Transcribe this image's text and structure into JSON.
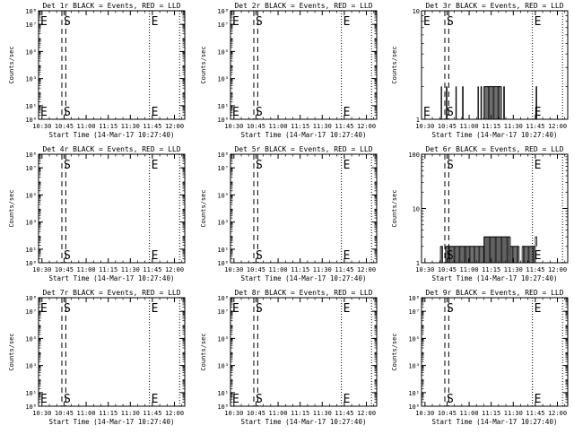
{
  "figure": {
    "background": "#ffffff",
    "ink": "#000000"
  },
  "chart_data": [
    {
      "type": "line",
      "title": "Det 1r BLACK = Events, RED = LLD",
      "ylabel": "Counts/sec",
      "xlabel": "Start Time (14-Mar-17 10:27:40)",
      "x_ticks": [
        "10:30",
        "10:45",
        "11:00",
        "11:15",
        "11:30",
        "11:45",
        "12:00"
      ],
      "xlim": [
        "10:27:40",
        "12:07:00"
      ],
      "y_scale": "log",
      "ylim": [
        1,
        100000000
      ],
      "y_ticks": [
        1,
        10,
        1000,
        100000,
        10000000,
        100000000
      ],
      "y_tick_labels": [
        "10⁰",
        "10¹",
        "10³",
        "10⁵",
        "10⁷",
        "10⁸"
      ],
      "markers": [
        {
          "label": "E",
          "time": "10:27:40",
          "style": "dotted"
        },
        {
          "label": "S",
          "time": "10:43:30",
          "style": "dashed"
        },
        {
          "label": "",
          "time": "10:46:10",
          "style": "dashed"
        },
        {
          "label": "E",
          "time": "11:43:00",
          "style": "dotted"
        },
        {
          "label": "",
          "time": "12:03:30",
          "style": "dotted"
        }
      ],
      "series": []
    },
    {
      "type": "line",
      "title": "Det 2r BLACK = Events, RED = LLD",
      "ylabel": "Counts/sec",
      "xlabel": "Start Time (14-Mar-17 10:27:40)",
      "x_ticks": [
        "10:30",
        "10:45",
        "11:00",
        "11:15",
        "11:30",
        "11:45",
        "12:00"
      ],
      "xlim": [
        "10:27:40",
        "12:07:00"
      ],
      "y_scale": "log",
      "ylim": [
        1,
        100000000
      ],
      "y_ticks": [
        1,
        10,
        1000,
        100000,
        10000000,
        100000000
      ],
      "y_tick_labels": [
        "10⁰",
        "10¹",
        "10³",
        "10⁵",
        "10⁷",
        "10⁸"
      ],
      "markers": [
        {
          "label": "E",
          "time": "10:27:40",
          "style": "dotted"
        },
        {
          "label": "S",
          "time": "10:43:30",
          "style": "dashed"
        },
        {
          "label": "",
          "time": "10:46:10",
          "style": "dashed"
        },
        {
          "label": "E",
          "time": "11:43:00",
          "style": "dotted"
        },
        {
          "label": "",
          "time": "12:03:30",
          "style": "dotted"
        }
      ],
      "series": []
    },
    {
      "type": "line",
      "title": "Det 3r BLACK = Events, RED = LLD",
      "ylabel": "Counts/sec",
      "xlabel": "Start Time (14-Mar-17 10:27:40)",
      "x_ticks": [
        "10:30",
        "10:45",
        "11:00",
        "11:15",
        "11:30",
        "11:45",
        "12:00"
      ],
      "xlim": [
        "10:27:40",
        "12:07:00"
      ],
      "y_scale": "log",
      "ylim": [
        1,
        10
      ],
      "y_ticks": [
        1,
        10
      ],
      "y_tick_labels": [
        "1",
        "10"
      ],
      "markers": [
        {
          "label": "E",
          "time": "10:27:40",
          "style": "dotted"
        },
        {
          "label": "S",
          "time": "10:43:30",
          "style": "dashed"
        },
        {
          "label": "",
          "time": "10:46:10",
          "style": "dashed"
        },
        {
          "label": "E",
          "time": "11:43:00",
          "style": "dotted"
        },
        {
          "label": "",
          "time": "12:03:30",
          "style": "dotted"
        }
      ],
      "series": [
        {
          "color": "#000000",
          "segments": [
            {
              "start": "10:41:00",
              "end": "10:41:20",
              "low": 1,
              "high": 2
            },
            {
              "start": "10:44:30",
              "end": "10:45:00",
              "low": 1,
              "high": 2
            },
            {
              "start": "10:51:00",
              "end": "10:51:20",
              "low": 1,
              "high": 2
            },
            {
              "start": "10:55:30",
              "end": "10:56:00",
              "low": 1,
              "high": 2
            },
            {
              "start": "11:06:00",
              "end": "11:06:20",
              "low": 1,
              "high": 2
            },
            {
              "start": "11:08:00",
              "end": "11:08:30",
              "low": 1,
              "high": 2
            },
            {
              "start": "11:10:00",
              "end": "11:22:00",
              "low": 1,
              "high": 2
            },
            {
              "start": "11:23:30",
              "end": "11:24:00",
              "low": 1,
              "high": 2
            },
            {
              "start": "11:45:30",
              "end": "11:46:00",
              "low": 1,
              "high": 2
            }
          ]
        }
      ]
    },
    {
      "type": "line",
      "title": "Det 4r BLACK = Events, RED = LLD",
      "ylabel": "Counts/sec",
      "xlabel": "Start Time (14-Mar-17 10:27:40)",
      "x_ticks": [
        "10:30",
        "10:45",
        "11:00",
        "11:15",
        "11:30",
        "11:45",
        "12:00"
      ],
      "xlim": [
        "10:27:40",
        "12:07:00"
      ],
      "y_scale": "log",
      "ylim": [
        1,
        100000000
      ],
      "y_ticks": [
        1,
        10,
        1000,
        100000,
        10000000,
        100000000
      ],
      "y_tick_labels": [
        "10⁰",
        "10¹",
        "10³",
        "10⁵",
        "10⁷",
        "10⁸"
      ],
      "markers": [
        {
          "label": "",
          "time": "10:27:40",
          "style": "dotted"
        },
        {
          "label": "S",
          "time": "10:43:30",
          "style": "dashed"
        },
        {
          "label": "",
          "time": "10:46:10",
          "style": "dashed"
        },
        {
          "label": "E",
          "time": "11:43:00",
          "style": "dotted"
        },
        {
          "label": "",
          "time": "12:03:30",
          "style": "dotted"
        }
      ],
      "series": []
    },
    {
      "type": "line",
      "title": "Det 5r BLACK = Events, RED = LLD",
      "ylabel": "Counts/sec",
      "xlabel": "Start Time (14-Mar-17 10:27:40)",
      "x_ticks": [
        "10:30",
        "10:45",
        "11:00",
        "11:15",
        "11:30",
        "11:45",
        "12:00"
      ],
      "xlim": [
        "10:27:40",
        "12:07:00"
      ],
      "y_scale": "log",
      "ylim": [
        1,
        100000000
      ],
      "y_ticks": [
        1,
        10,
        1000,
        100000,
        10000000,
        100000000
      ],
      "y_tick_labels": [
        "10⁰",
        "10¹",
        "10³",
        "10⁵",
        "10⁷",
        "10⁸"
      ],
      "markers": [
        {
          "label": "",
          "time": "10:27:40",
          "style": "dotted"
        },
        {
          "label": "S",
          "time": "10:43:30",
          "style": "dashed"
        },
        {
          "label": "",
          "time": "10:46:10",
          "style": "dashed"
        },
        {
          "label": "E",
          "time": "11:43:00",
          "style": "dotted"
        },
        {
          "label": "",
          "time": "12:03:30",
          "style": "dotted"
        }
      ],
      "series": []
    },
    {
      "type": "line",
      "title": "Det 6r BLACK = Events, RED = LLD",
      "ylabel": "Counts/sec",
      "xlabel": "Start Time (14-Mar-17 10:27:40)",
      "x_ticks": [
        "10:30",
        "10:45",
        "11:00",
        "11:15",
        "11:30",
        "11:45",
        "12:00"
      ],
      "xlim": [
        "10:27:40",
        "12:07:00"
      ],
      "y_scale": "log",
      "ylim": [
        1,
        100
      ],
      "y_ticks": [
        1,
        10,
        100
      ],
      "y_tick_labels": [
        "1",
        "10",
        "100"
      ],
      "markers": [
        {
          "label": "",
          "time": "10:27:40",
          "style": "dotted"
        },
        {
          "label": "S",
          "time": "10:43:30",
          "style": "dashed"
        },
        {
          "label": "",
          "time": "10:46:10",
          "style": "dashed"
        },
        {
          "label": "E",
          "time": "11:43:00",
          "style": "dotted"
        },
        {
          "label": "",
          "time": "12:03:30",
          "style": "dotted"
        }
      ],
      "series": [
        {
          "color": "#000000",
          "segments": [
            {
              "start": "10:40:30",
              "end": "10:42:00",
              "low": 1,
              "high": 2
            },
            {
              "start": "10:44:00",
              "end": "10:58:00",
              "low": 1,
              "high": 2
            },
            {
              "start": "10:58:00",
              "end": "11:10:00",
              "low": 1,
              "high": 2
            },
            {
              "start": "11:10:00",
              "end": "11:28:00",
              "low": 1,
              "high": 3
            },
            {
              "start": "11:28:00",
              "end": "11:34:00",
              "low": 1,
              "high": 2
            },
            {
              "start": "11:36:00",
              "end": "11:45:00",
              "low": 1,
              "high": 2
            },
            {
              "start": "11:45:00",
              "end": "11:46:00",
              "low": 2,
              "high": 3
            }
          ]
        }
      ]
    },
    {
      "type": "line",
      "title": "Det 7r BLACK = Events, RED = LLD",
      "ylabel": "Counts/sec",
      "xlabel": "Start Time (14-Mar-17 10:27:40)",
      "x_ticks": [
        "10:30",
        "10:45",
        "11:00",
        "11:15",
        "11:30",
        "11:45",
        "12:00"
      ],
      "xlim": [
        "10:27:40",
        "12:07:00"
      ],
      "y_scale": "log",
      "ylim": [
        1,
        100000000
      ],
      "y_ticks": [
        1,
        10,
        1000,
        100000,
        10000000,
        100000000
      ],
      "y_tick_labels": [
        "10⁰",
        "10¹",
        "10³",
        "10⁵",
        "10⁷",
        "10⁸"
      ],
      "markers": [
        {
          "label": "E",
          "time": "10:27:40",
          "style": "dotted"
        },
        {
          "label": "S",
          "time": "10:43:30",
          "style": "dashed"
        },
        {
          "label": "",
          "time": "10:46:10",
          "style": "dashed"
        },
        {
          "label": "E",
          "time": "11:43:00",
          "style": "dotted"
        },
        {
          "label": "",
          "time": "12:03:30",
          "style": "dotted"
        }
      ],
      "series": []
    },
    {
      "type": "line",
      "title": "Det 8r BLACK = Events, RED = LLD",
      "ylabel": "Counts/sec",
      "xlabel": "Start Time (14-Mar-17 10:27:40)",
      "x_ticks": [
        "10:30",
        "10:45",
        "11:00",
        "11:15",
        "11:30",
        "11:45",
        "12:00"
      ],
      "xlim": [
        "10:27:40",
        "12:07:00"
      ],
      "y_scale": "log",
      "ylim": [
        1,
        100000000
      ],
      "y_ticks": [
        1,
        10,
        1000,
        100000,
        10000000,
        100000000
      ],
      "y_tick_labels": [
        "10⁰",
        "10¹",
        "10³",
        "10⁵",
        "10⁷",
        "10⁸"
      ],
      "markers": [
        {
          "label": "E",
          "time": "10:27:40",
          "style": "dotted"
        },
        {
          "label": "S",
          "time": "10:43:30",
          "style": "dashed"
        },
        {
          "label": "",
          "time": "10:46:10",
          "style": "dashed"
        },
        {
          "label": "E",
          "time": "11:43:00",
          "style": "dotted"
        },
        {
          "label": "",
          "time": "12:03:30",
          "style": "dotted"
        }
      ],
      "series": []
    },
    {
      "type": "line",
      "title": "Det 9r BLACK = Events, RED = LLD",
      "ylabel": "Counts/sec",
      "xlabel": "Start Time (14-Mar-17 10:27:40)",
      "x_ticks": [
        "10:30",
        "10:45",
        "11:00",
        "11:15",
        "11:30",
        "11:45",
        "12:00"
      ],
      "xlim": [
        "10:27:40",
        "12:07:00"
      ],
      "y_scale": "log",
      "ylim": [
        1,
        100000000
      ],
      "y_ticks": [
        1,
        10,
        1000,
        100000,
        10000000,
        100000000
      ],
      "y_tick_labels": [
        "10⁰",
        "10¹",
        "10³",
        "10⁵",
        "10⁷",
        "10⁸"
      ],
      "markers": [
        {
          "label": "",
          "time": "10:27:40",
          "style": "dotted"
        },
        {
          "label": "S",
          "time": "10:43:30",
          "style": "dashed"
        },
        {
          "label": "",
          "time": "10:46:10",
          "style": "dashed"
        },
        {
          "label": "E",
          "time": "11:43:00",
          "style": "dotted"
        },
        {
          "label": "",
          "time": "12:03:30",
          "style": "dotted"
        }
      ],
      "series": []
    }
  ]
}
